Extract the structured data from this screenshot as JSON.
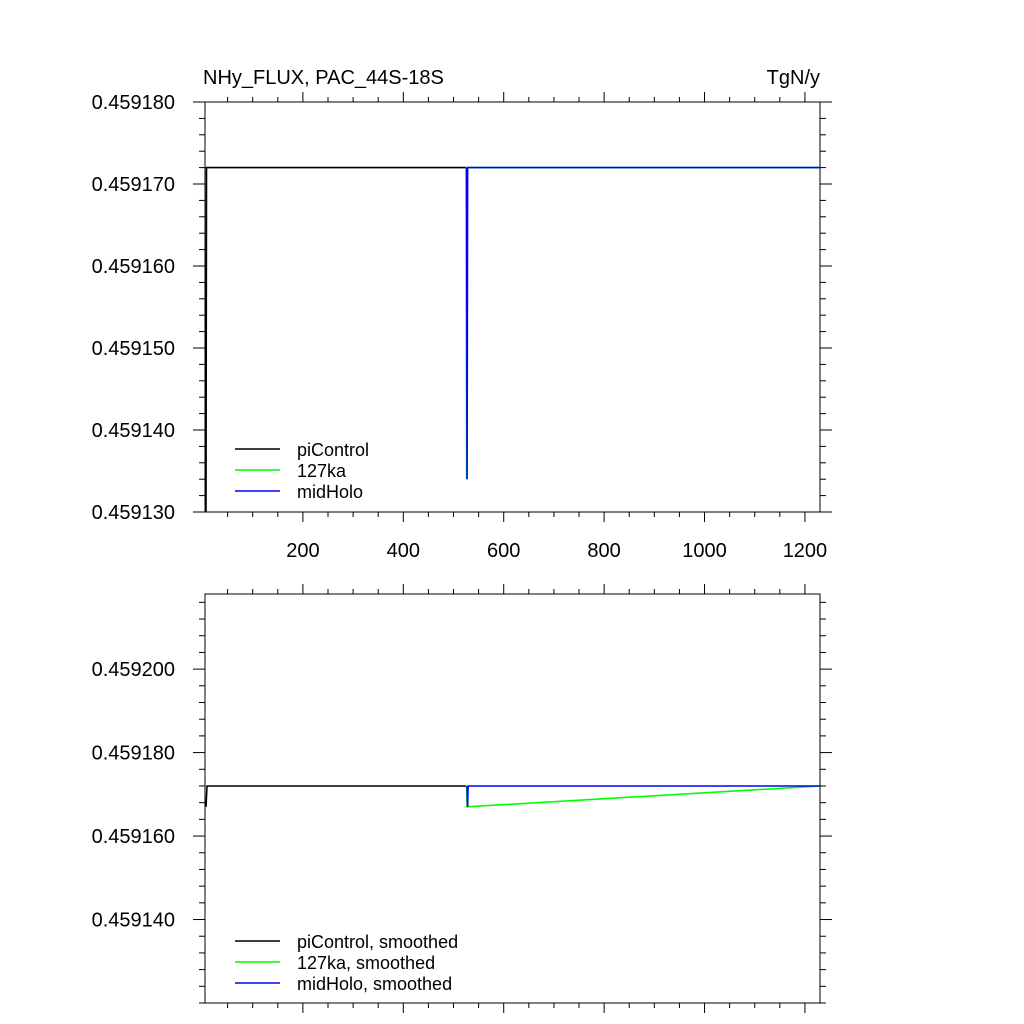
{
  "chart_data": [
    {
      "type": "line",
      "title_left": "NHy_FLUX, PAC_44S-18S",
      "title_right": "TgN/y",
      "xlabel": "",
      "ylabel": "",
      "xlim": [
        5,
        1230
      ],
      "ylim": [
        0.45913,
        0.45918
      ],
      "x_ticks": [
        200,
        400,
        600,
        800,
        1000,
        1200
      ],
      "x_tick_labels": [
        "200",
        "400",
        "600",
        "800",
        "1000",
        "1200"
      ],
      "y_ticks": [
        0.45913,
        0.45914,
        0.45915,
        0.45916,
        0.45917,
        0.45918
      ],
      "y_tick_labels": [
        "0.459130",
        "0.459140",
        "0.459150",
        "0.459160",
        "0.459170",
        "0.459180"
      ],
      "grid": false,
      "legend_position": "bottom-left",
      "series": [
        {
          "name": "piControl",
          "color": "#000000",
          "x": [
            5,
            7,
            8,
            525
          ],
          "y": [
            0.45913,
            0.45913,
            0.459172,
            0.459172
          ]
        },
        {
          "name": "127ka",
          "color": "#00ff00",
          "x": [
            525,
            526,
            527,
            1230
          ],
          "y": [
            0.459172,
            0.459134,
            0.459172,
            0.459172
          ]
        },
        {
          "name": "midHolo",
          "color": "#0000ff",
          "x": [
            526,
            527,
            528,
            1230
          ],
          "y": [
            0.459172,
            0.459134,
            0.459172,
            0.459172
          ]
        }
      ]
    },
    {
      "type": "line",
      "xlabel": "",
      "ylabel": "",
      "xlim": [
        5,
        1230
      ],
      "ylim": [
        0.45912,
        0.459218
      ],
      "x_ticks": [
        200,
        400,
        600,
        800,
        1000,
        1200
      ],
      "y_ticks": [
        0.45914,
        0.45916,
        0.45918,
        0.4592
      ],
      "y_tick_labels": [
        "0.459140",
        "0.459160",
        "0.459180",
        "0.459200"
      ],
      "grid": false,
      "legend_position": "bottom-left",
      "series": [
        {
          "name": "piControl, smoothed",
          "color": "#000000",
          "x": [
            7,
            9,
            525
          ],
          "y": [
            0.459167,
            0.459172,
            0.459172
          ]
        },
        {
          "name": "127ka, smoothed",
          "color": "#00ff00",
          "x": [
            526,
            527,
            1230
          ],
          "y": [
            0.459172,
            0.459167,
            0.459172
          ]
        },
        {
          "name": "midHolo, smoothed",
          "color": "#0000ff",
          "x": [
            527,
            528,
            529,
            1230
          ],
          "y": [
            0.459172,
            0.459167,
            0.459172,
            0.459172
          ]
        }
      ]
    }
  ]
}
